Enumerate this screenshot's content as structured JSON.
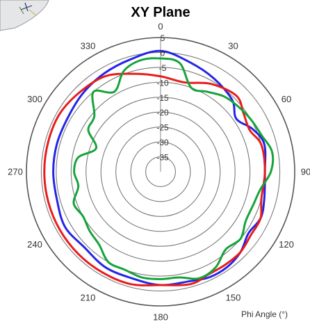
{
  "chart_data": {
    "type": "polar-line",
    "title": "XY Plane",
    "angle_label": "Phi Angle (°)",
    "angle_ticks": [
      "0",
      "30",
      "60",
      "90",
      "120",
      "150",
      "180",
      "210",
      "240",
      "270",
      "300",
      "330"
    ],
    "radial_ticks": [
      "5",
      "0",
      "-5",
      "-10",
      "-15",
      "-20",
      "-25",
      "-30",
      "-35"
    ],
    "rlim": [
      -40,
      5
    ],
    "grid": true,
    "series": [
      {
        "color": "#2424e8",
        "theta": [
          0,
          15,
          30,
          45,
          55,
          65,
          75,
          90,
          105,
          115,
          125,
          135,
          145,
          155,
          165,
          180,
          195,
          210,
          225,
          240,
          255,
          270,
          285,
          300,
          315,
          330,
          345
        ],
        "r": [
          0.5,
          -2,
          -4,
          -6,
          -9,
          -6,
          -4,
          -5,
          -4,
          -3,
          -4,
          -2,
          -1,
          -1,
          -2,
          -2,
          -3,
          -3,
          -4,
          -3,
          -4,
          -4,
          -4,
          -4,
          -3,
          -2,
          -1
        ]
      },
      {
        "color": "#e81c1c",
        "theta": [
          0,
          15,
          30,
          45,
          55,
          65,
          75,
          90,
          105,
          115,
          125,
          135,
          145,
          155,
          165,
          180,
          195,
          210,
          225,
          240,
          255,
          270,
          285,
          300,
          315,
          330,
          345
        ],
        "r": [
          -8,
          -9,
          -6,
          -4,
          -6,
          -7,
          -5,
          -5,
          -5,
          -3,
          -3,
          -2,
          -2,
          -2,
          -1,
          -2,
          -1,
          -1,
          -1,
          -1,
          -1,
          -1,
          -1,
          -1,
          -2,
          -3,
          -6
        ]
      },
      {
        "color": "#16a33a",
        "theta": [
          0,
          10,
          20,
          30,
          40,
          50,
          60,
          70,
          80,
          90,
          100,
          110,
          120,
          130,
          140,
          150,
          160,
          170,
          180,
          190,
          200,
          210,
          220,
          230,
          240,
          250,
          260,
          270,
          280,
          290,
          300,
          310,
          320,
          330,
          340,
          350
        ],
        "r": [
          -2,
          -3,
          -10,
          -9,
          -7,
          -6,
          -5,
          -4,
          -2,
          -3,
          -6,
          -7,
          -7,
          -5,
          -6,
          -3,
          -2,
          -4,
          -4,
          -4,
          -5,
          -5,
          -8,
          -9,
          -10,
          -9,
          -12,
          -11,
          -12,
          -17,
          -12,
          -11,
          -5,
          -9,
          -4,
          -2
        ]
      }
    ]
  }
}
